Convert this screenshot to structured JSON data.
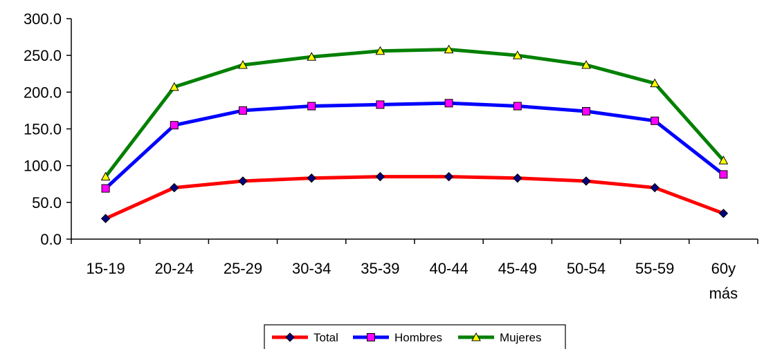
{
  "chart_data": {
    "type": "line",
    "categories": [
      "15-19",
      "20-24",
      "25-29",
      "30-34",
      "35-39",
      "40-44",
      "45-49",
      "50-54",
      "55-59",
      "60y más"
    ],
    "category_lines": [
      [
        "15-19"
      ],
      [
        "20-24"
      ],
      [
        "25-29"
      ],
      [
        "30-34"
      ],
      [
        "35-39"
      ],
      [
        "40-44"
      ],
      [
        "45-49"
      ],
      [
        "50-54"
      ],
      [
        "55-59"
      ],
      [
        "60y",
        "más"
      ]
    ],
    "ylim": [
      0,
      300
    ],
    "yticks": [
      0,
      50,
      100,
      150,
      200,
      250,
      300
    ],
    "ytick_labels": [
      "0.0",
      "50.0",
      "100.0",
      "150.0",
      "200.0",
      "250.0",
      "300.0"
    ],
    "grid": false,
    "legend_position": "bottom",
    "series": [
      {
        "name": "Total",
        "color": "#ff0000",
        "marker": "diamond",
        "marker_color": "#000080",
        "values": [
          28,
          70,
          79,
          83,
          85,
          85,
          83,
          79,
          70,
          35
        ]
      },
      {
        "name": "Hombres",
        "color": "#0000ff",
        "marker": "square",
        "marker_color": "#ff00ff",
        "values": [
          69,
          155,
          175,
          181,
          183,
          185,
          181,
          174,
          161,
          88
        ]
      },
      {
        "name": "Mujeres",
        "color": "#008000",
        "marker": "triangle",
        "marker_color": "#ffff00",
        "values": [
          85,
          207,
          237,
          248,
          256,
          258,
          250,
          237,
          212,
          107
        ]
      }
    ]
  }
}
